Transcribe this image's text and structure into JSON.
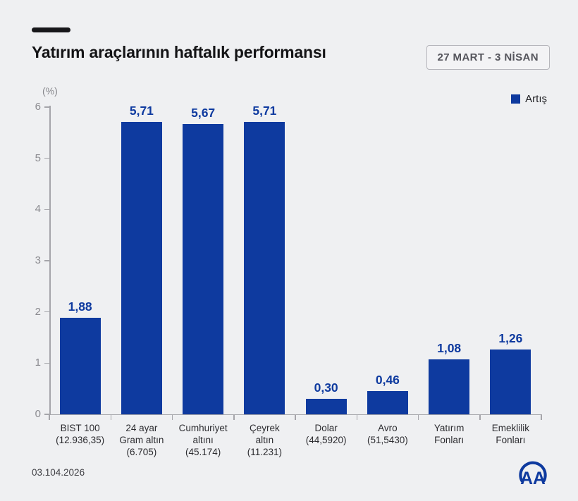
{
  "header": {
    "title": "Yatırım araçlarının haftalık performansı",
    "date_range_badge": "27 MART - 3 NİSAN"
  },
  "chart_data": {
    "type": "bar",
    "title": "Yatırım araçlarının haftalık performansı",
    "subtitle": "27 MART - 3 NİSAN",
    "unit_label": "(%)",
    "legend_label": "Artış",
    "legend_position": "top-right",
    "grid": false,
    "categories": [
      "BIST 100 (12.936,35)",
      "24 ayar Gram altın (6.705)",
      "Cumhuriyet altını (45.174)",
      "Çeyrek altın (11.231)",
      "Dolar (44,5920)",
      "Avro (51,5430)",
      "Yatırım Fonları",
      "Emeklilik Fonları"
    ],
    "category_label_lines": [
      [
        "BIST 100",
        "(12.936,35)"
      ],
      [
        "24 ayar",
        "Gram altın",
        "(6.705)"
      ],
      [
        "Cumhuriyet",
        "altını",
        "(45.174)"
      ],
      [
        "Çeyrek",
        "altın",
        "(11.231)"
      ],
      [
        "Dolar",
        "(44,5920)"
      ],
      [
        "Avro",
        "(51,5430)"
      ],
      [
        "Yatırım",
        "Fonları"
      ],
      [
        "Emeklilik",
        "Fonları"
      ]
    ],
    "values": [
      1.88,
      5.71,
      5.67,
      5.71,
      0.3,
      0.46,
      1.08,
      1.26
    ],
    "value_labels": [
      "1,88",
      "5,71",
      "5,67",
      "5,71",
      "0,30",
      "0,46",
      "1,08",
      "1,26"
    ],
    "y_ticks": [
      0,
      1,
      2,
      3,
      4,
      5,
      6
    ],
    "ylim": [
      0,
      6
    ],
    "xlabel": "",
    "ylabel": "(%)"
  },
  "footer": {
    "date": "03.104.2026",
    "logo": "AA"
  },
  "colors": {
    "bar": "#0e3a9f",
    "background": "#eff0f2",
    "axis": "#a5a5aa"
  }
}
